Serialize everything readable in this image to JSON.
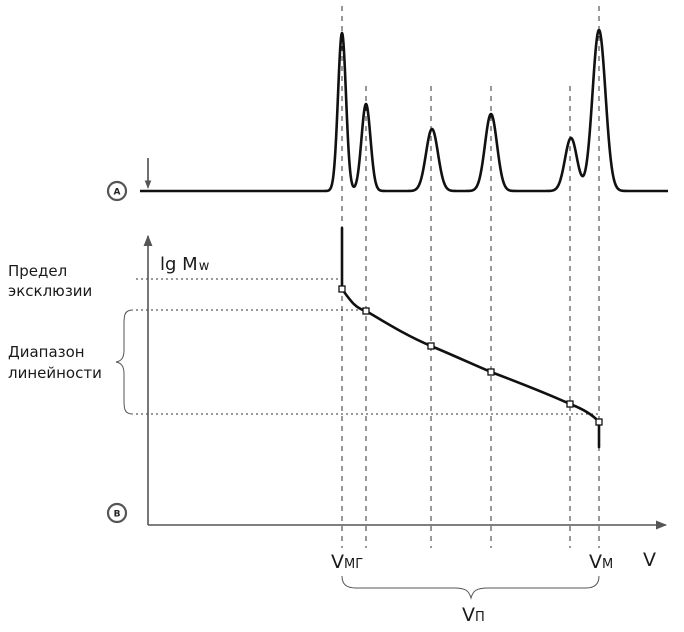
{
  "markers": {
    "a": "A",
    "b": "B"
  },
  "labels": {
    "y_axis_base": "lg M",
    "y_axis_sub": "w",
    "exclusion_line1": "Предел",
    "exclusion_line2": "эксклюзии",
    "linear_line1": "Диапазон",
    "linear_line2": "линейности",
    "x_axis": "V",
    "v_mg_base": "V",
    "v_mg_sub": "МГ",
    "v_m_base": "V",
    "v_m_sub": "М",
    "v_p_base": "V",
    "v_p_sub": "П"
  },
  "colors": {
    "line": "#111111",
    "axis": "#555555",
    "guide": "#333333",
    "background": "#ffffff"
  }
}
